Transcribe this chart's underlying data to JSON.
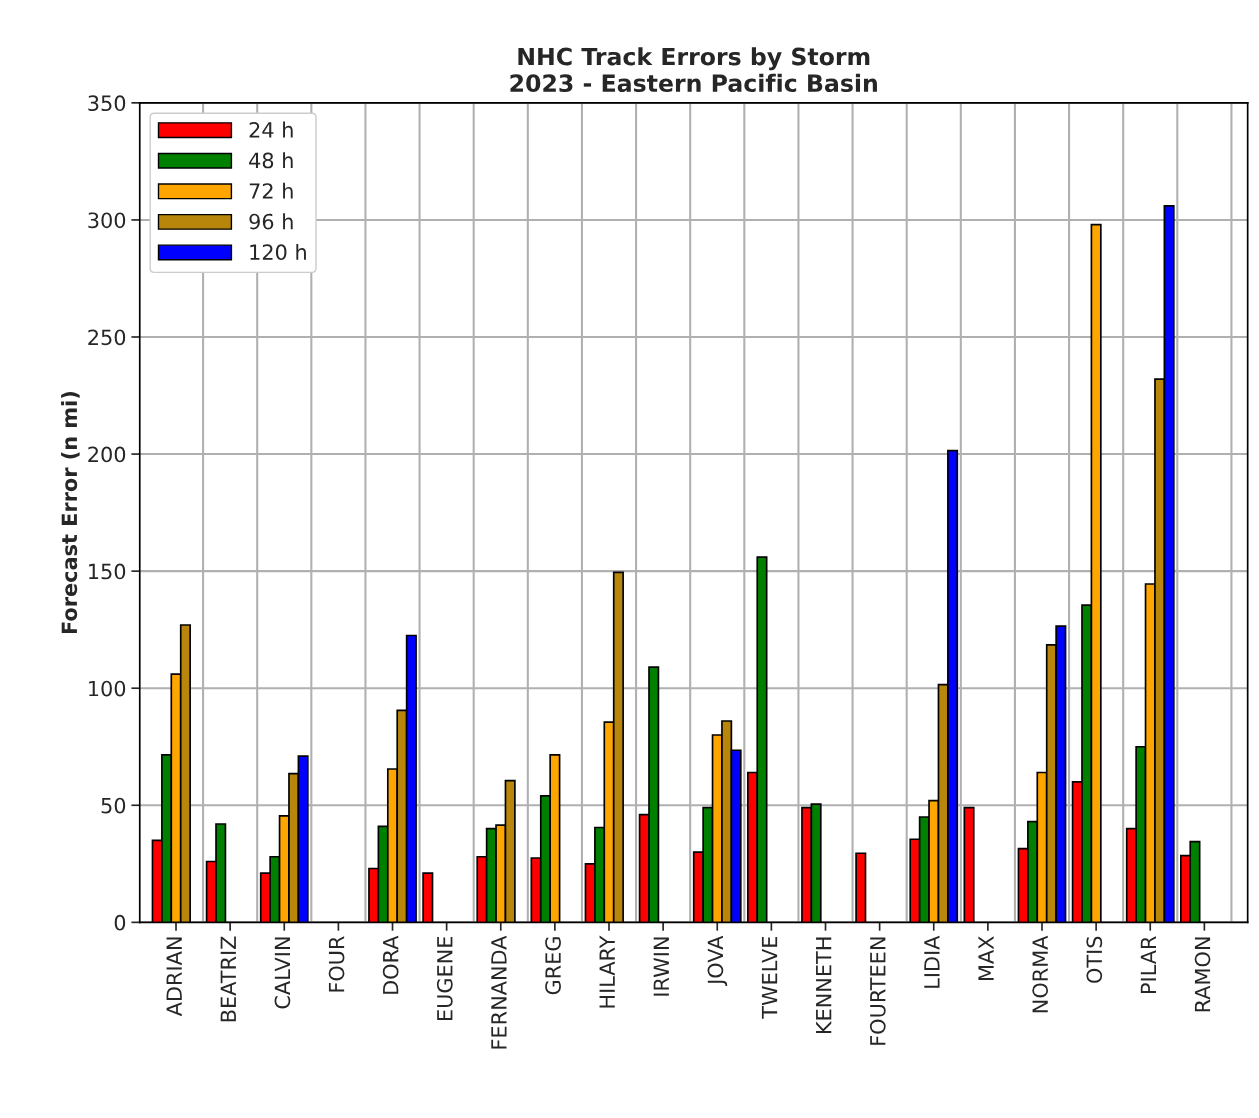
{
  "chart_data": {
    "type": "bar",
    "title": "NHC Track Errors by Storm\n2023 - Eastern Pacific Basin",
    "ylabel": "Forecast Error (n mi)",
    "categories": [
      "ADRIAN",
      "BEATRIZ",
      "CALVIN",
      "FOUR",
      "DORA",
      "EUGENE",
      "FERNANDA",
      "GREG",
      "HILARY",
      "IRWIN",
      "JOVA",
      "TWELVE",
      "KENNETH",
      "FOURTEEN",
      "LIDIA",
      "MAX",
      "NORMA",
      "OTIS",
      "PILAR",
      "RAMON"
    ],
    "series": [
      {
        "name": "24 h",
        "color": "#ff0000",
        "values": [
          35,
          26,
          21,
          null,
          23,
          21,
          28,
          27.5,
          25,
          46,
          30,
          64,
          49,
          29.5,
          35.5,
          49,
          31.5,
          60,
          40,
          28.5
        ]
      },
      {
        "name": "48 h",
        "color": "#008000",
        "values": [
          71.5,
          42,
          28,
          null,
          41,
          null,
          40,
          54,
          40.5,
          109,
          49,
          156,
          50.5,
          null,
          45,
          null,
          43,
          135.5,
          75,
          34.5
        ]
      },
      {
        "name": "72 h",
        "color": "#ffa500",
        "values": [
          106,
          null,
          45.5,
          null,
          65.5,
          null,
          41.5,
          71.5,
          85.5,
          null,
          80,
          null,
          null,
          null,
          52,
          null,
          64,
          298,
          144.5,
          null
        ]
      },
      {
        "name": "96 h",
        "color": "#b8860b",
        "values": [
          127,
          null,
          63.5,
          null,
          90.5,
          null,
          60.5,
          null,
          149.5,
          null,
          86,
          null,
          null,
          null,
          101.5,
          null,
          118.5,
          null,
          232,
          null
        ]
      },
      {
        "name": "120 h",
        "color": "#0000ff",
        "values": [
          null,
          null,
          71,
          null,
          122.5,
          null,
          null,
          null,
          null,
          null,
          73.5,
          null,
          null,
          null,
          201.5,
          null,
          126.5,
          null,
          306,
          null
        ]
      }
    ],
    "ylim": [
      0,
      350
    ],
    "yticks": [
      0,
      50,
      100,
      150,
      200,
      250,
      300,
      350
    ],
    "grid": true,
    "legend": "top left"
  }
}
